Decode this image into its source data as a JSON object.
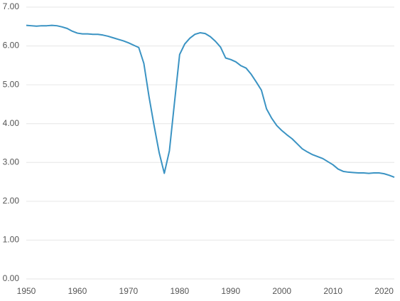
{
  "chart_data": {
    "type": "line",
    "color": "#3a93c3",
    "grid": true,
    "x": [
      1950,
      1951,
      1952,
      1953,
      1954,
      1955,
      1956,
      1957,
      1958,
      1959,
      1960,
      1961,
      1962,
      1963,
      1964,
      1965,
      1966,
      1967,
      1968,
      1969,
      1970,
      1971,
      1972,
      1973,
      1974,
      1975,
      1976,
      1977,
      1978,
      1979,
      1980,
      1981,
      1982,
      1983,
      1984,
      1985,
      1986,
      1987,
      1988,
      1989,
      1990,
      1991,
      1992,
      1993,
      1994,
      1995,
      1996,
      1997,
      1998,
      1999,
      2000,
      2001,
      2002,
      2003,
      2004,
      2005,
      2006,
      2007,
      2008,
      2009,
      2010,
      2011,
      2012,
      2013,
      2014,
      2015,
      2016,
      2017,
      2018,
      2019,
      2020,
      2021,
      2022
    ],
    "values": [
      6.53,
      6.52,
      6.51,
      6.52,
      6.52,
      6.53,
      6.52,
      6.49,
      6.45,
      6.38,
      6.33,
      6.31,
      6.31,
      6.3,
      6.3,
      6.28,
      6.25,
      6.21,
      6.17,
      6.13,
      6.08,
      6.02,
      5.96,
      5.55,
      4.7,
      3.95,
      3.25,
      2.72,
      3.3,
      4.55,
      5.78,
      6.05,
      6.2,
      6.3,
      6.34,
      6.32,
      6.24,
      6.12,
      5.97,
      5.69,
      5.65,
      5.59,
      5.49,
      5.43,
      5.27,
      5.07,
      4.86,
      4.38,
      4.14,
      3.95,
      3.82,
      3.71,
      3.61,
      3.48,
      3.35,
      3.27,
      3.2,
      3.15,
      3.1,
      3.02,
      2.94,
      2.83,
      2.77,
      2.75,
      2.74,
      2.73,
      2.73,
      2.72,
      2.73,
      2.73,
      2.71,
      2.67,
      2.62
    ],
    "xlim": [
      1950,
      2022
    ],
    "xticks": [
      1950,
      1960,
      1970,
      1980,
      1990,
      2000,
      2010,
      2020
    ],
    "ylim": [
      0,
      7
    ],
    "yticks": [
      {
        "value": 0,
        "label": "0.00"
      },
      {
        "value": 1,
        "label": "1.00"
      },
      {
        "value": 2,
        "label": "2.00"
      },
      {
        "value": 3,
        "label": "3.00"
      },
      {
        "value": 4,
        "label": "4.00"
      },
      {
        "value": 5,
        "label": "5.00"
      },
      {
        "value": 6,
        "label": "6.00"
      },
      {
        "value": 7,
        "label": "7.00"
      }
    ]
  }
}
